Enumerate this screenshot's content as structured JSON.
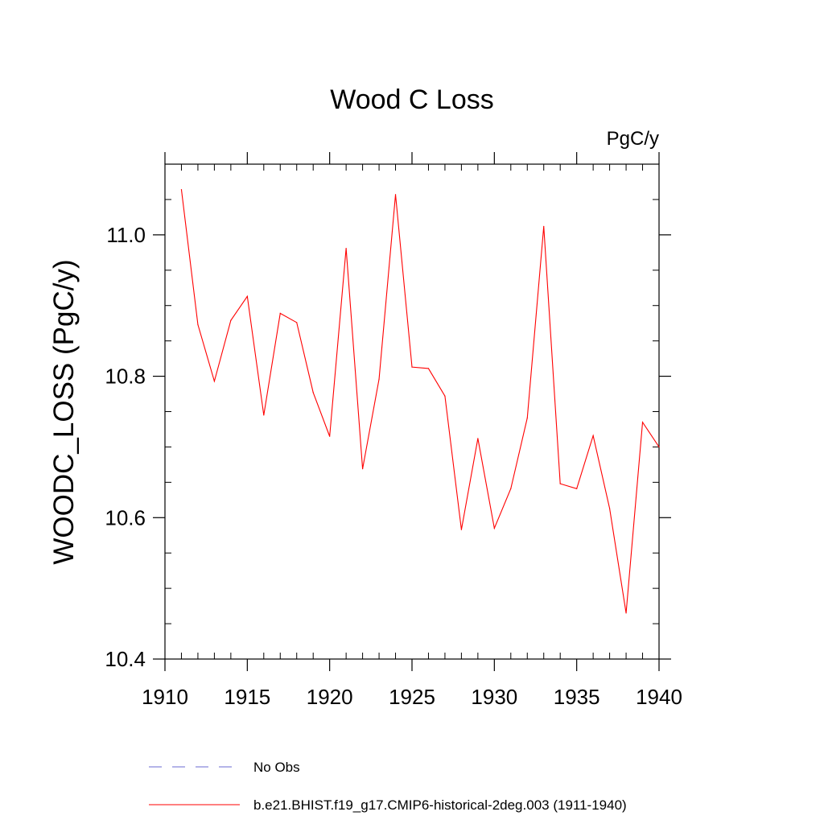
{
  "chart_data": {
    "type": "line",
    "title": "Wood C Loss",
    "units_label": "PgC/y",
    "ylabel": "WOODC_LOSS  (PgC/y)",
    "xlabel": "",
    "xlim": [
      1910,
      1940
    ],
    "ylim": [
      10.4,
      11.1
    ],
    "x_ticks": [
      1910,
      1915,
      1920,
      1925,
      1930,
      1935,
      1940
    ],
    "x_tick_labels": [
      "1910",
      "1915",
      "1920",
      "1925",
      "1930",
      "1935",
      "1940"
    ],
    "y_ticks": [
      10.4,
      10.6,
      10.8,
      11.0
    ],
    "y_tick_labels": [
      "10.4",
      "10.6",
      "10.8",
      "11.0"
    ],
    "y_minor_step": 0.05,
    "x_minor_step": 1,
    "grid": false,
    "legend_position": "bottom",
    "series": [
      {
        "name": "b.e21.BHIST.f19_g17.CMIP6-historical-2deg.003 (1911-1940)",
        "color": "#ff0000",
        "x": [
          1911,
          1912,
          1913,
          1914,
          1915,
          1916,
          1917,
          1918,
          1919,
          1920,
          1921,
          1922,
          1923,
          1924,
          1925,
          1926,
          1927,
          1928,
          1929,
          1930,
          1931,
          1932,
          1933,
          1934,
          1935,
          1936,
          1937,
          1938,
          1939,
          1940
        ],
        "values": [
          11.064,
          10.873,
          10.793,
          10.879,
          10.913,
          10.745,
          10.889,
          10.876,
          10.777,
          10.715,
          10.981,
          10.669,
          10.796,
          11.057,
          10.813,
          10.811,
          10.772,
          10.583,
          10.712,
          10.585,
          10.641,
          10.741,
          11.012,
          10.648,
          10.641,
          10.716,
          10.613,
          10.465,
          10.735,
          10.7
        ]
      }
    ],
    "legend": [
      {
        "label": "No Obs",
        "color": "#6a6ad0",
        "style": "dashed"
      },
      {
        "label": "b.e21.BHIST.f19_g17.CMIP6-historical-2deg.003 (1911-1940)",
        "color": "#ff0000",
        "style": "solid"
      }
    ]
  }
}
